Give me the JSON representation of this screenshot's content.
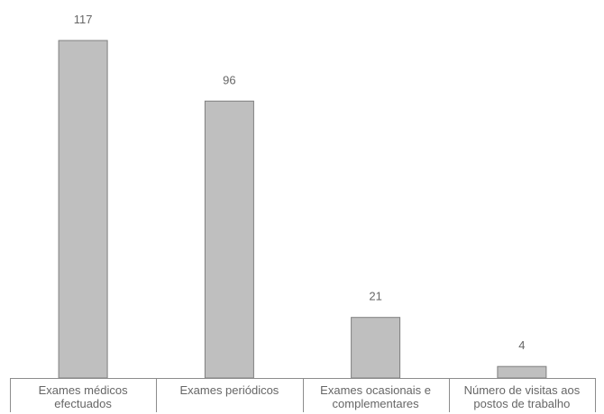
{
  "chart_data": {
    "type": "bar",
    "categories": [
      [
        "Exames médicos",
        "efectuados"
      ],
      [
        "Exames periódicos"
      ],
      [
        "Exames ocasionais e",
        "complementares"
      ],
      [
        "Número de visitas aos",
        "postos de trabalho"
      ]
    ],
    "values": [
      117,
      96,
      21,
      4
    ],
    "data_labels": [
      "117",
      "96",
      "21",
      "4"
    ],
    "title": "",
    "xlabel": "",
    "ylabel": "",
    "ylim": [
      0,
      117
    ],
    "grid": false,
    "legend": "none",
    "colors": {
      "bar_fill": "#bfbfbf",
      "bar_stroke": "#7f7f7f",
      "axis": "#8c8c8c",
      "text": "#666666"
    }
  }
}
